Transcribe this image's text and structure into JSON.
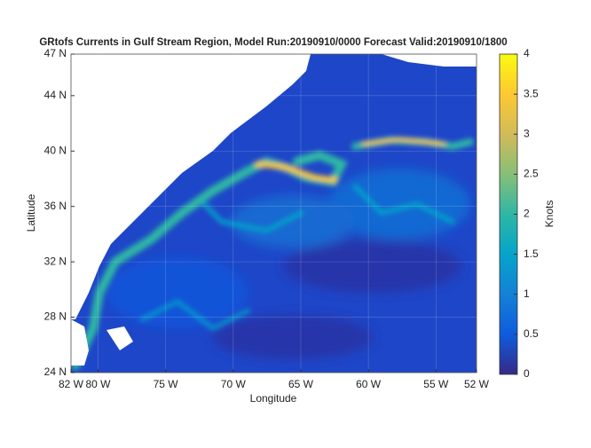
{
  "chart_data": {
    "type": "map",
    "title": "GRtofs Currents in Gulf Stream Region, Model Run:20190910/0000 Forecast Valid:20190910/1800",
    "xlabel": "Longitude",
    "ylabel": "Latitude",
    "xlim": [
      -82,
      -52
    ],
    "ylim": [
      24,
      47
    ],
    "xticks": [
      {
        "value": -82,
        "label": "82 W"
      },
      {
        "value": -80,
        "label": "80 W"
      },
      {
        "value": -75,
        "label": "75 W"
      },
      {
        "value": -70,
        "label": "70 W"
      },
      {
        "value": -65,
        "label": "65 W"
      },
      {
        "value": -60,
        "label": "60 W"
      },
      {
        "value": -55,
        "label": "55 W"
      },
      {
        "value": -52,
        "label": "52 W"
      }
    ],
    "yticks": [
      {
        "value": 24,
        "label": "24 N"
      },
      {
        "value": 28,
        "label": "28 N"
      },
      {
        "value": 32,
        "label": "32 N"
      },
      {
        "value": 36,
        "label": "36 N"
      },
      {
        "value": 40,
        "label": "40 N"
      },
      {
        "value": 44,
        "label": "44 N"
      },
      {
        "value": 47,
        "label": "47 N"
      }
    ],
    "grid": true,
    "colorbar": {
      "label": "Knots",
      "lim": [
        0,
        4
      ],
      "ticks": [
        0,
        0.5,
        1,
        1.5,
        2,
        2.5,
        3,
        3.5,
        4
      ],
      "colormap": [
        "#352a87",
        "#0f5cdd",
        "#1481d6",
        "#06a4ca",
        "#2eb7a4",
        "#87bf77",
        "#d1bb59",
        "#fec832",
        "#f9fb0e"
      ]
    }
  }
}
